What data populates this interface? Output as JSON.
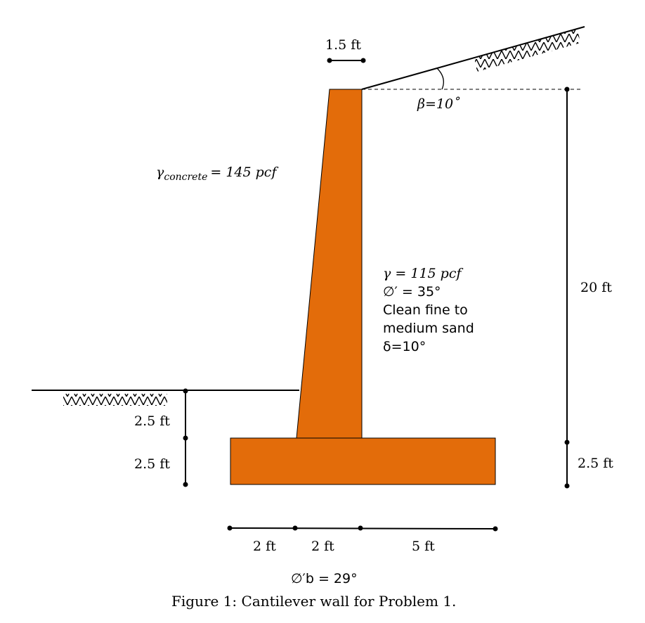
{
  "figure": {
    "caption": "Figure 1: Cantilever wall for Problem 1.",
    "colors": {
      "concrete": "#e36c0a",
      "line": "#000000"
    }
  },
  "labels": {
    "stem_top_width": "1.5 ft",
    "backfill_slope": "β=10˚",
    "concrete_unit_weight": {
      "gamma": "γ",
      "subscript": "concrete",
      "rest": "= 145 pcf"
    },
    "soil": {
      "unit_weight": "γ = 115 pcf",
      "friction_angle": "∅′ = 35°",
      "desc_line1": "Clean fine to",
      "desc_line2": "medium sand",
      "wall_friction": "δ=10°"
    },
    "retained_height": "20 ft",
    "base_thickness_right": "2.5 ft",
    "front_embed_upper": "2.5 ft",
    "front_embed_lower": "2.5 ft",
    "toe_width": "2 ft",
    "stem_base_width": "2 ft",
    "heel_width": "5 ft",
    "base_friction_angle": "∅′b = 29°"
  }
}
